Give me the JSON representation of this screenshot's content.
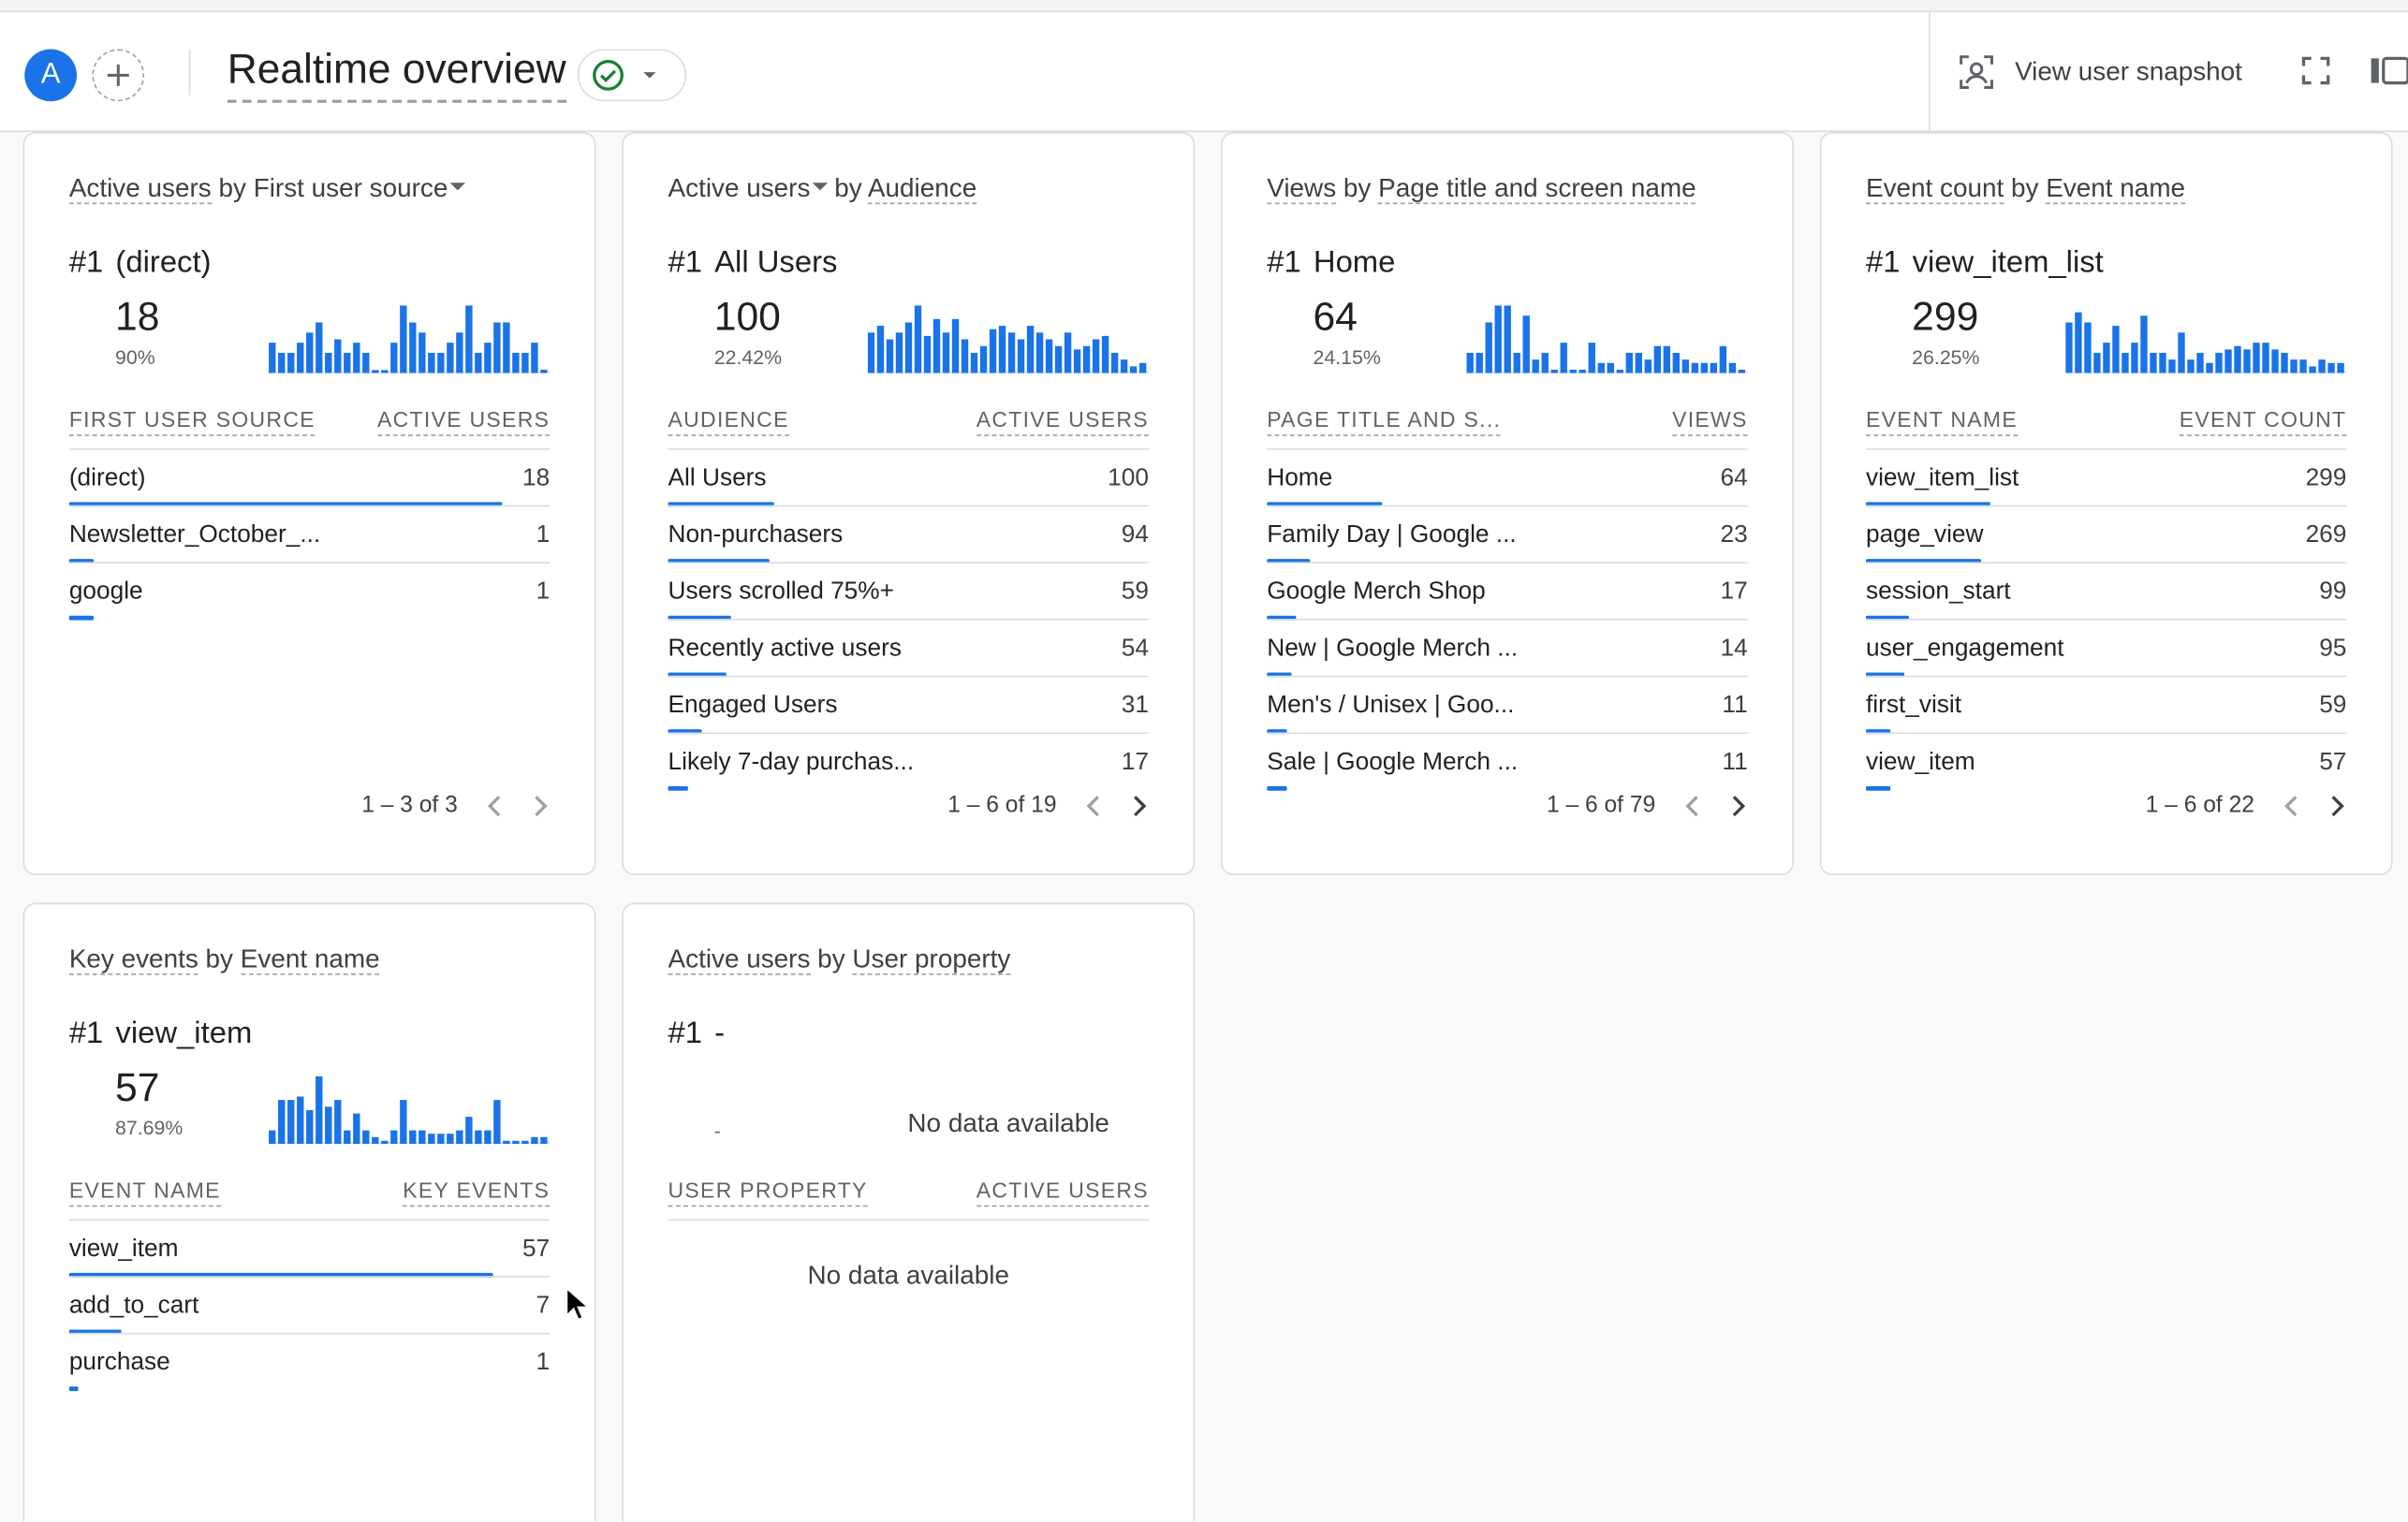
{
  "header": {
    "avatar_letter": "A",
    "title": "Realtime overview",
    "snapshot_label": "View user snapshot",
    "accent_color": "#1a73e8",
    "status_color": "#188038"
  },
  "cards": [
    {
      "title_metric": "Active users",
      "title_by": "by",
      "title_dim": "First user source",
      "rank_hash": "#1",
      "top_name": "(direct)",
      "top_value": "18",
      "top_pct": "90%",
      "col_left": "FIRST USER SOURCE",
      "col_right": "ACTIVE USERS",
      "rows": [
        {
          "label": "(direct)",
          "value": "18",
          "share": 0.9
        },
        {
          "label": "Newsletter_October_...",
          "value": "1",
          "share": 0.05
        },
        {
          "label": "google",
          "value": "1",
          "share": 0.05
        }
      ],
      "pager": "1 – 3 of 3",
      "spark": [
        0.45,
        0.3,
        0.3,
        0.45,
        0.6,
        0.75,
        0.3,
        0.5,
        0.3,
        0.45,
        0.3,
        0,
        0,
        0.45,
        1.0,
        0.75,
        0.6,
        0.3,
        0.3,
        0.45,
        0.6,
        1.0,
        0.3,
        0.45,
        0.75,
        0.75,
        0.3,
        0.3,
        0.45,
        0.05
      ]
    },
    {
      "title_metric": "Active users",
      "title_by": "by",
      "title_dim": "Audience",
      "rank_hash": "#1",
      "top_name": "All Users",
      "top_value": "100",
      "top_pct": "22.42%",
      "col_left": "AUDIENCE",
      "col_right": "ACTIVE USERS",
      "rows": [
        {
          "label": "All Users",
          "value": "100",
          "share": 0.22
        },
        {
          "label": "Non-purchasers",
          "value": "94",
          "share": 0.21
        },
        {
          "label": "Users scrolled 75%+",
          "value": "59",
          "share": 0.13
        },
        {
          "label": "Recently active users",
          "value": "54",
          "share": 0.12
        },
        {
          "label": "Engaged Users",
          "value": "31",
          "share": 0.07
        },
        {
          "label": "Likely 7-day purchas...",
          "value": "17",
          "share": 0.04
        }
      ],
      "pager": "1 – 6 of 19",
      "spark": [
        0.6,
        0.7,
        0.5,
        0.6,
        0.75,
        1.0,
        0.55,
        0.8,
        0.6,
        0.8,
        0.5,
        0.3,
        0.4,
        0.65,
        0.7,
        0.6,
        0.5,
        0.7,
        0.6,
        0.5,
        0.4,
        0.6,
        0.35,
        0.4,
        0.5,
        0.55,
        0.3,
        0.2,
        0.1,
        0.15
      ]
    },
    {
      "title_metric": "Views",
      "title_by": "by",
      "title_dim": "Page title and screen name",
      "rank_hash": "#1",
      "top_name": "Home",
      "top_value": "64",
      "top_pct": "24.15%",
      "col_left": "PAGE TITLE AND S...",
      "col_right": "VIEWS",
      "rows": [
        {
          "label": "Home",
          "value": "64",
          "share": 0.24
        },
        {
          "label": "Family Day | Google ...",
          "value": "23",
          "share": 0.09
        },
        {
          "label": "Google Merch Shop",
          "value": "17",
          "share": 0.06
        },
        {
          "label": "New | Google Merch ...",
          "value": "14",
          "share": 0.05
        },
        {
          "label": "Men's / Unisex | Goo...",
          "value": "11",
          "share": 0.04
        },
        {
          "label": "Sale | Google Merch ...",
          "value": "11",
          "share": 0.04
        }
      ],
      "pager": "1 – 6 of 79",
      "spark": [
        0.3,
        0.3,
        0.75,
        1.0,
        1.0,
        0.3,
        0.85,
        0.2,
        0.3,
        0.05,
        0.45,
        0.05,
        0.05,
        0.45,
        0.15,
        0.15,
        0.05,
        0.3,
        0.3,
        0.2,
        0.4,
        0.4,
        0.3,
        0.2,
        0.15,
        0.15,
        0.15,
        0.4,
        0.15,
        0.05
      ]
    },
    {
      "title_metric": "Event count",
      "title_by": "by",
      "title_dim": "Event name",
      "rank_hash": "#1",
      "top_name": "view_item_list",
      "top_value": "299",
      "top_pct": "26.25%",
      "col_left": "EVENT NAME",
      "col_right": "EVENT COUNT",
      "rows": [
        {
          "label": "view_item_list",
          "value": "299",
          "share": 0.26
        },
        {
          "label": "page_view",
          "value": "269",
          "share": 0.24
        },
        {
          "label": "session_start",
          "value": "99",
          "share": 0.09
        },
        {
          "label": "user_engagement",
          "value": "95",
          "share": 0.08
        },
        {
          "label": "first_visit",
          "value": "59",
          "share": 0.05
        },
        {
          "label": "view_item",
          "value": "57",
          "share": 0.05
        }
      ],
      "pager": "1 – 6 of 22",
      "spark": [
        0.75,
        0.9,
        0.75,
        0.3,
        0.45,
        0.7,
        0.3,
        0.45,
        0.85,
        0.3,
        0.3,
        0.2,
        0.6,
        0.2,
        0.3,
        0.15,
        0.3,
        0.35,
        0.4,
        0.35,
        0.45,
        0.45,
        0.35,
        0.3,
        0.2,
        0.2,
        0.1,
        0.2,
        0.15,
        0.15
      ]
    },
    {
      "title_metric": "Key events",
      "title_by": "by",
      "title_dim": "Event name",
      "rank_hash": "#1",
      "top_name": "view_item",
      "top_value": "57",
      "top_pct": "87.69%",
      "col_left": "EVENT NAME",
      "col_right": "KEY EVENTS",
      "rows": [
        {
          "label": "view_item",
          "value": "57",
          "share": 0.88
        },
        {
          "label": "add_to_cart",
          "value": "7",
          "share": 0.11
        },
        {
          "label": "purchase",
          "value": "1",
          "share": 0.02
        }
      ],
      "pager": "",
      "spark": [
        0.2,
        0.65,
        0.65,
        0.7,
        0.5,
        1.0,
        0.55,
        0.65,
        0.2,
        0.45,
        0.2,
        0.1,
        0,
        0.2,
        0.65,
        0.2,
        0.2,
        0.15,
        0.15,
        0.15,
        0.2,
        0.4,
        0.2,
        0.2,
        0.65,
        0,
        0,
        0,
        0.1,
        0.1
      ]
    },
    {
      "title_metric": "Active users",
      "title_by": "by",
      "title_dim": "User property",
      "rank_hash": "#1",
      "top_name": "-",
      "top_dash": "-",
      "no_data_top": "No data available",
      "col_left": "USER PROPERTY",
      "col_right": "ACTIVE USERS",
      "no_data_table": "No data available"
    }
  ]
}
